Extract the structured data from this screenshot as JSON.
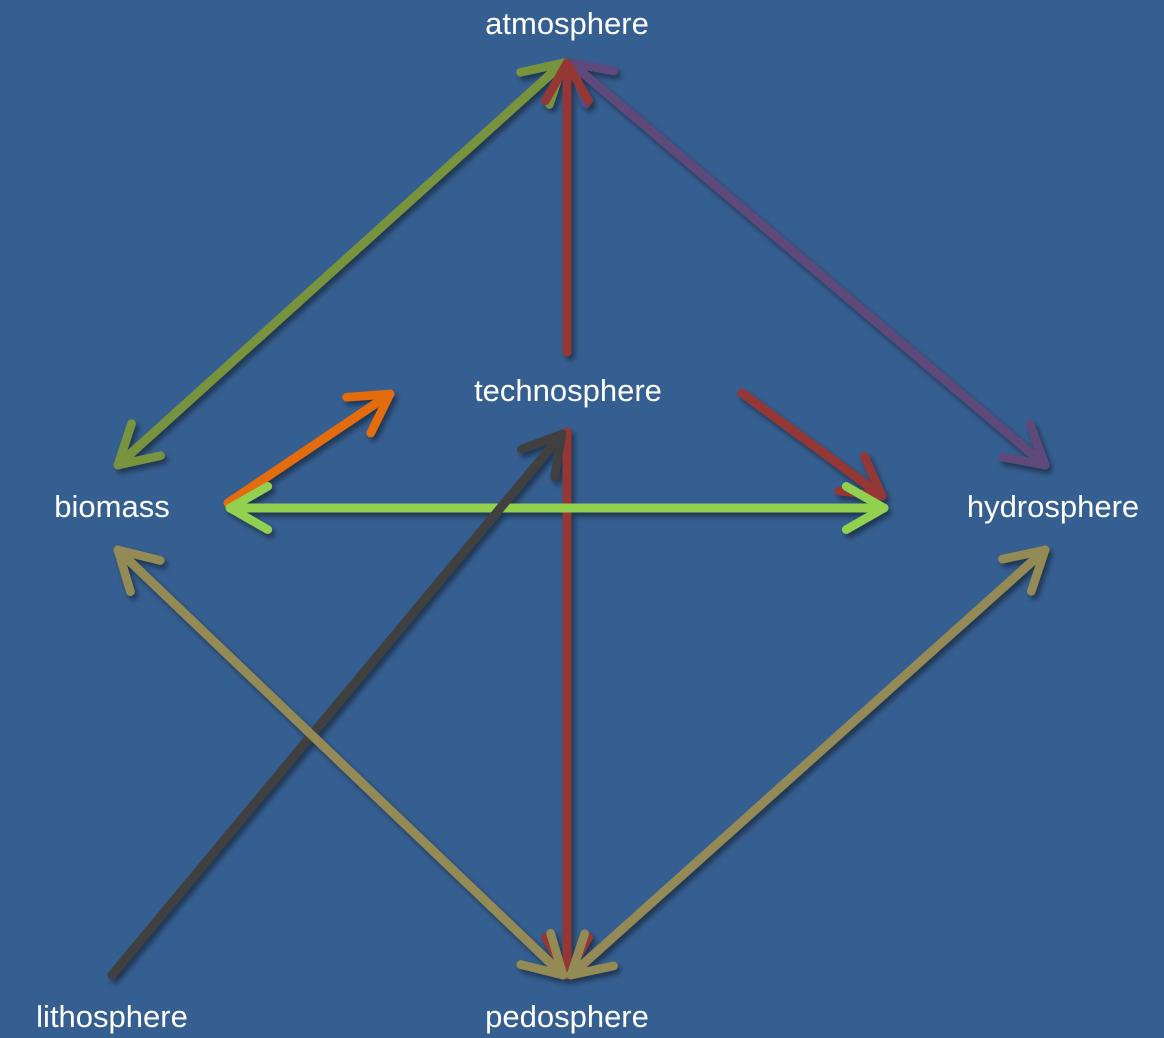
{
  "nodes": [
    {
      "label": "atmosphere"
    },
    {
      "label": "technosphere"
    },
    {
      "label": "biomass"
    },
    {
      "label": "hydrosphere"
    },
    {
      "label": "lithosphere"
    },
    {
      "label": "pedosphere"
    }
  ]
}
